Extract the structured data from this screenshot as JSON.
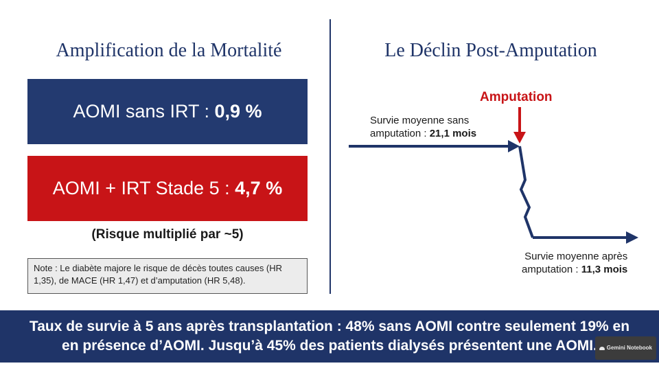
{
  "left_panel": {
    "title": "Amplification de la Mortalité",
    "box1": {
      "label": "AOMI sans IRT : ",
      "value": "0,9 %"
    },
    "box2": {
      "label": "AOMI + IRT Stade 5 : ",
      "value": "4,7 %"
    },
    "risk": "(Risque multiplié par ~5)",
    "note": "Note : Le diabète majore le risque de décès toutes causes (HR 1,35), de MACE (HR 1,47) et d’amputation (HR 5,48)."
  },
  "right_panel": {
    "title": "Le Déclin Post-Amputation",
    "event_label": "Amputation",
    "before": {
      "line1": "Survie moyenne sans",
      "line2_prefix": "amputation : ",
      "value": "21,1 mois"
    },
    "after": {
      "line1": "Survie moyenne après",
      "line2_prefix": "amputation : ",
      "value": "11,3 mois"
    }
  },
  "banner": {
    "line1": "Taux de survie à 5 ans après transplantation : 48% sans AOMI contre seulement 19% en",
    "line2": "en présence d’AOMI. Jusqu’à 45% des patients dialysés présentent une AOMI."
  },
  "badge": {
    "text": "Gemini Notebook"
  },
  "colors": {
    "navy": "#1f3468",
    "red": "#c81417"
  }
}
